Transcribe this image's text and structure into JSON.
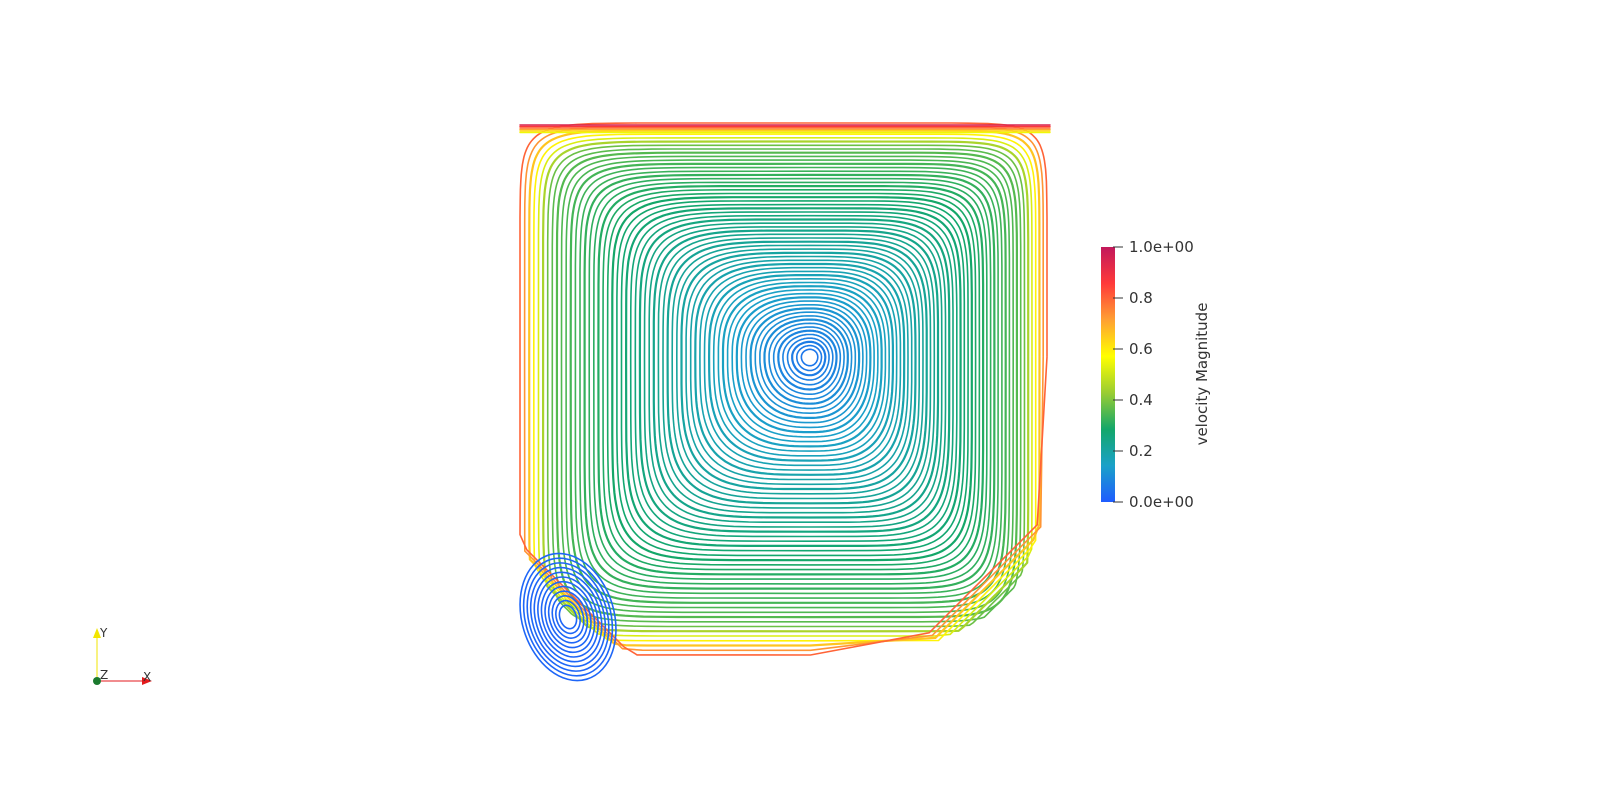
{
  "colorbar": {
    "title": "velocity Magnitude",
    "min": 0.0,
    "max": 1.0,
    "ticks": [
      {
        "value": 1.0,
        "label": "1.0e+00"
      },
      {
        "value": 0.8,
        "label": "0.8"
      },
      {
        "value": 0.6,
        "label": "0.6"
      },
      {
        "value": 0.4,
        "label": "0.4"
      },
      {
        "value": 0.2,
        "label": "0.2"
      },
      {
        "value": 0.0,
        "label": "0.0e+00"
      }
    ],
    "colormap": [
      "#1f5cff",
      "#1aa1c8",
      "#13a76a",
      "#9acd32",
      "#ffff00",
      "#ffa033",
      "#ff3a3a",
      "#c2185b"
    ]
  },
  "axes_triad": {
    "x_label": "X",
    "y_label": "Y",
    "z_label": "Z",
    "x_color": "#e31a1c",
    "y_color": "#f2e600",
    "z_color": "#1b7a2e"
  }
}
